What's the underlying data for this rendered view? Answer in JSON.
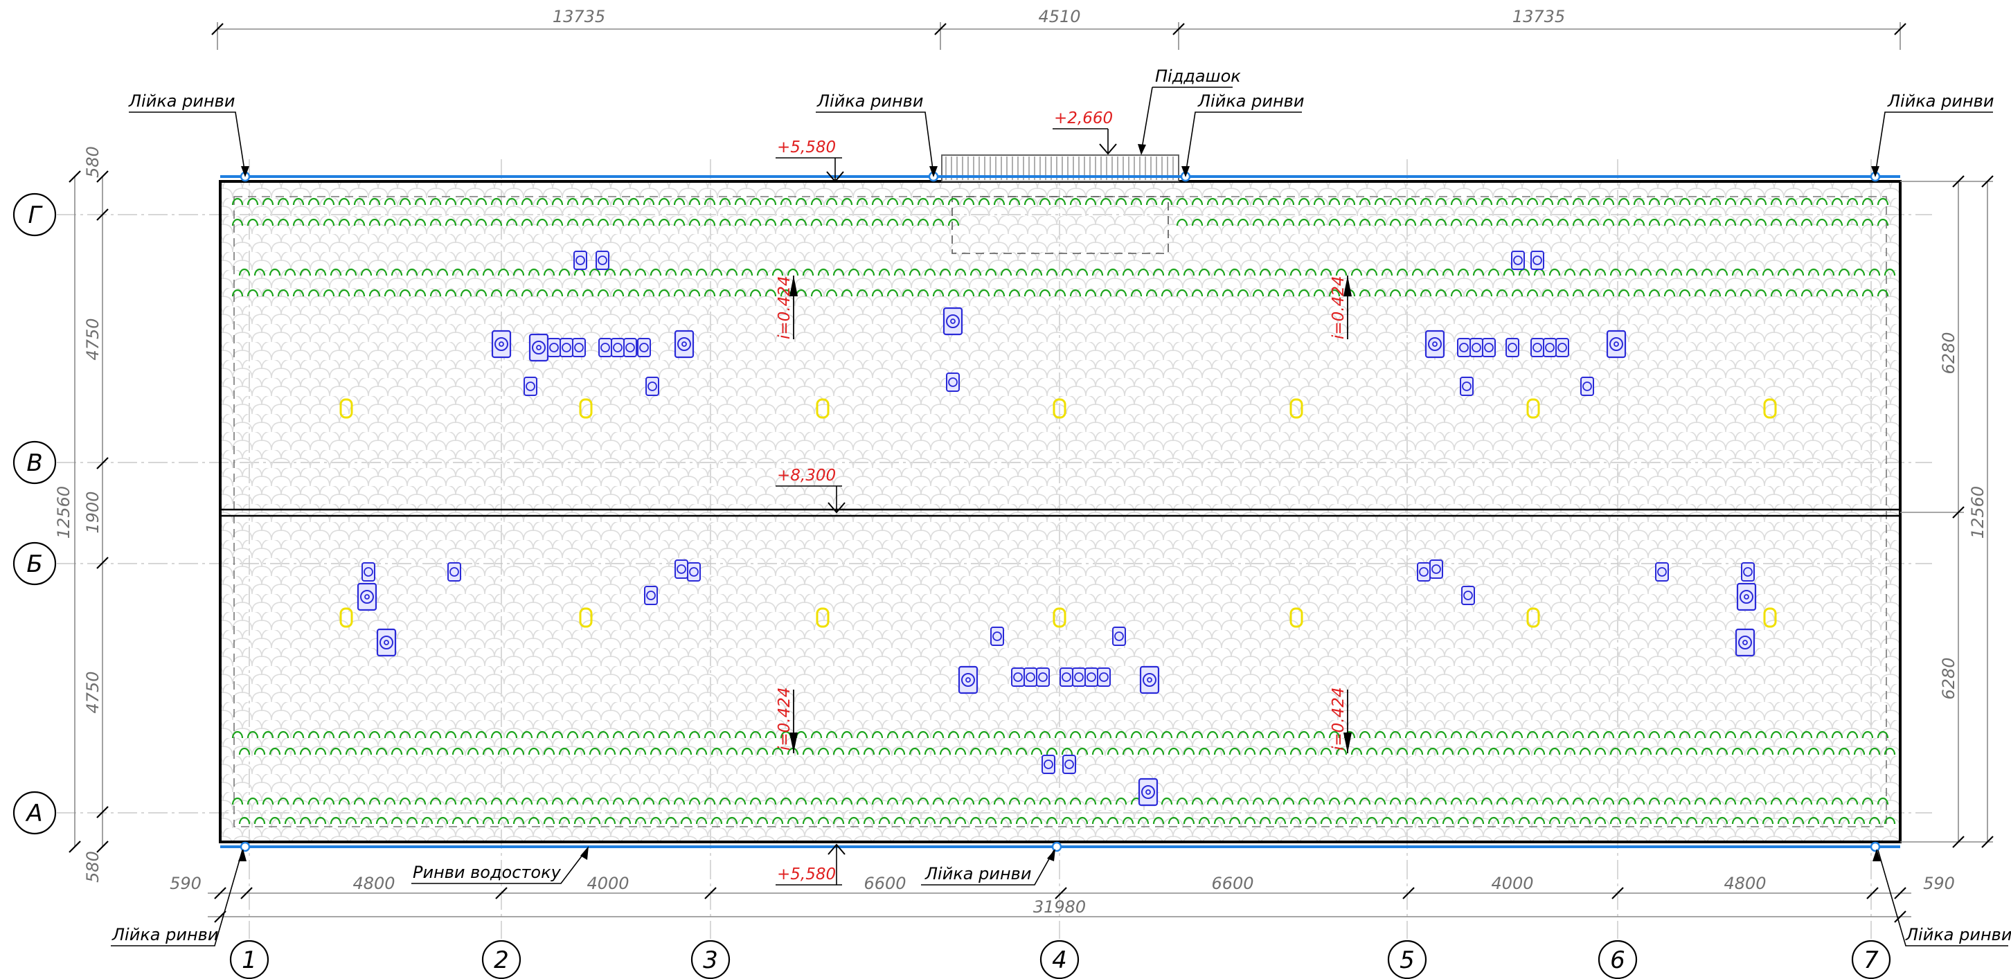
{
  "dimensions_top": [
    "13735",
    "4510",
    "13735"
  ],
  "dimensions_bottom": [
    "590",
    "4800",
    "4000",
    "6600",
    "6600",
    "4000",
    "4800",
    "590"
  ],
  "dimension_overall_bottom": "31980",
  "dimensions_left": [
    "580",
    "4750",
    "1900",
    "4750",
    "580"
  ],
  "dimension_overall_left": "12560",
  "dimensions_right": [
    "6280",
    "6280"
  ],
  "dimension_overall_right": "12560",
  "axes_columns": [
    "1",
    "2",
    "3",
    "4",
    "5",
    "6",
    "7"
  ],
  "axes_rows": [
    "Г",
    "В",
    "Б",
    "А"
  ],
  "labels": {
    "funnel": "Лійка ринви",
    "canopy": "Піддашок",
    "gutters": "Ринви водостоку"
  },
  "elevations": {
    "top_eave": "+5,580",
    "canopy": "+2,660",
    "ridge": "+8,300",
    "bottom_eave": "+5,580"
  },
  "slope": "i=0.424",
  "colors": {
    "roof_outline": "#000000",
    "gutter": "#1f7fe0",
    "snow_guard": "#1aa31a",
    "fixture": "#2a2ad8",
    "vent": "#f0e000",
    "elevation": "#e02020",
    "tile_pattern": "#dcdcdc"
  }
}
